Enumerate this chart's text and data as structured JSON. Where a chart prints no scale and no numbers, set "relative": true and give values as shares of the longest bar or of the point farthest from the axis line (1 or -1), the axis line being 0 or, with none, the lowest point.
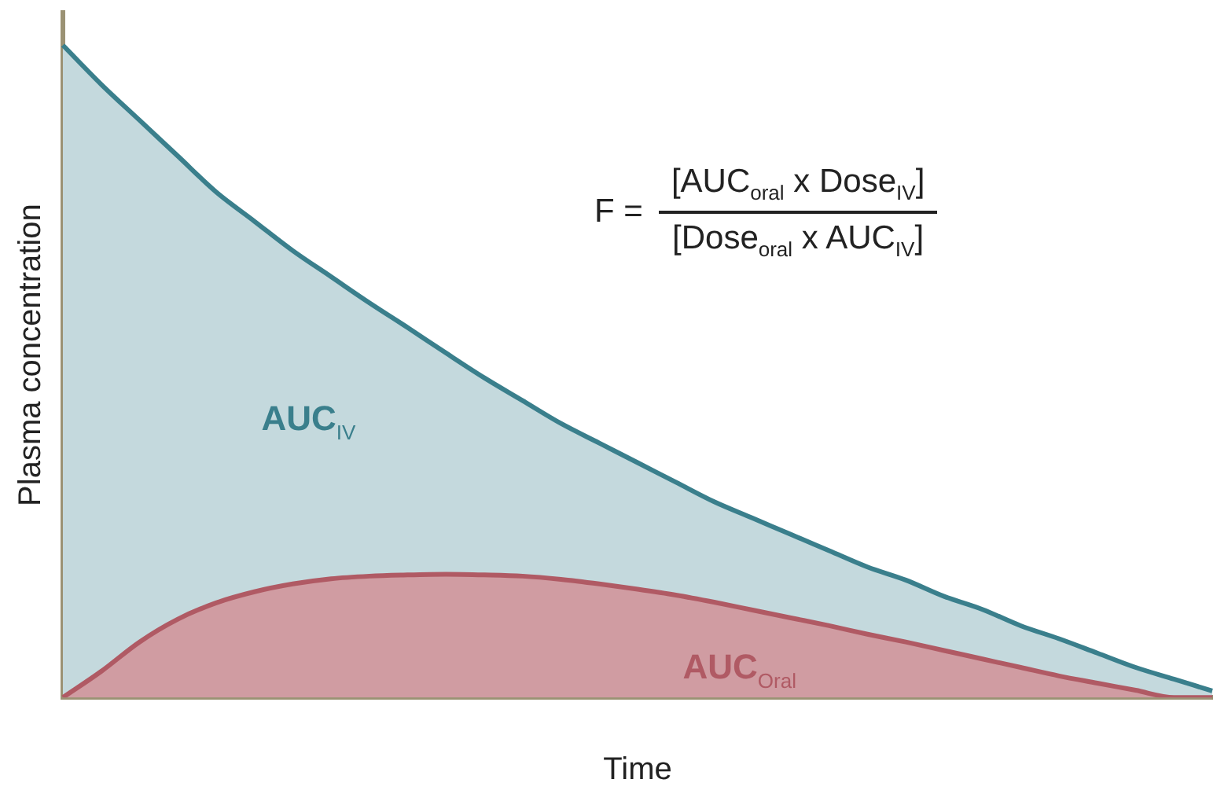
{
  "chart_data": {
    "type": "area",
    "relative": true,
    "xlabel": "Time",
    "ylabel": "Plasma concentration",
    "categories": [
      null,
      null,
      null,
      null,
      null,
      null,
      null,
      null,
      null,
      null,
      null,
      null,
      null,
      null,
      null,
      null,
      null,
      null,
      null,
      null,
      null,
      null,
      null,
      null,
      null,
      null,
      null,
      null,
      null,
      null,
      null
    ],
    "series": [
      {
        "name": "AUC$_{IV}$",
        "color": "#3a7f8c",
        "values": [
          1.0,
          0.94,
          0.885,
          0.83,
          0.775,
          0.73,
          0.685,
          0.645,
          0.605,
          0.567,
          0.528,
          0.49,
          0.455,
          0.42,
          0.39,
          0.36,
          0.33,
          0.3,
          0.275,
          0.25,
          0.225,
          0.2,
          0.18,
          0.155,
          0.135,
          0.11,
          0.09,
          0.068,
          0.046,
          0.028,
          0.01
        ]
      },
      {
        "name": "AUC$_{Oral}$",
        "color": "#b05a64",
        "values": [
          0,
          0.04,
          0.085,
          0.12,
          0.145,
          0.162,
          0.174,
          0.182,
          0.186,
          0.188,
          0.189,
          0.188,
          0.186,
          0.181,
          0.174,
          0.166,
          0.157,
          0.146,
          0.134,
          0.122,
          0.11,
          0.097,
          0.085,
          0.072,
          0.059,
          0.046,
          0.033,
          0.022,
          0.011,
          0,
          0
        ]
      }
    ],
    "annotations": [
      "F =",
      "[AUC$_{oral}$ x Dose$_{IV}$]",
      "[Dose$_{oral}$ x AUC$_{IV}$]"
    ],
    "legend": false,
    "grid": false
  }
}
